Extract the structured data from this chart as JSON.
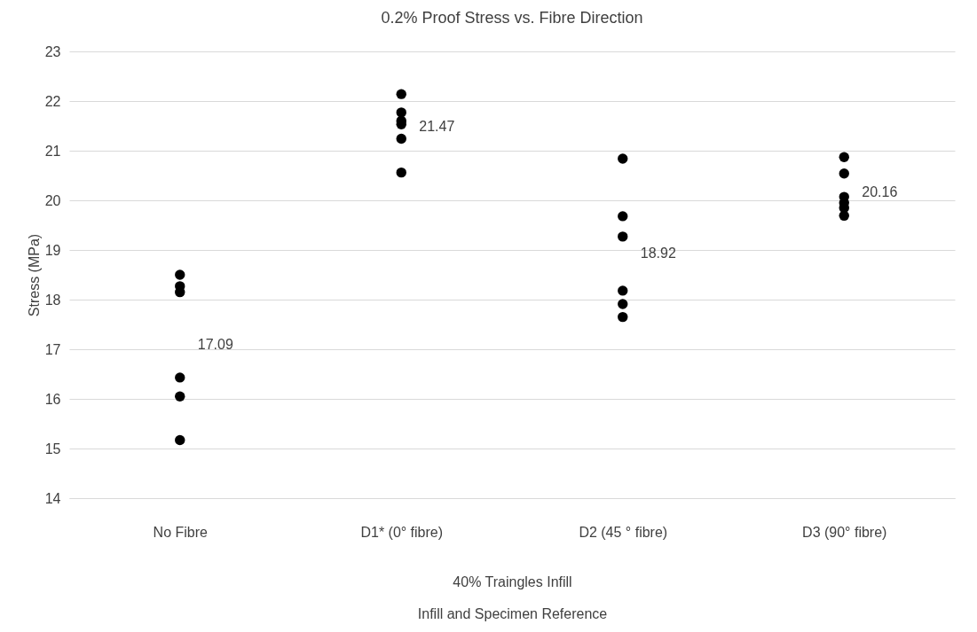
{
  "chart_data": {
    "type": "scatter",
    "title": "0.2% Proof Stress vs. Fibre Direction",
    "xlabel": "Infill and Specimen Reference",
    "ylabel": "Stress (MPa)",
    "categories": [
      "No Fibre",
      "D1* (0° fibre)",
      "D2 (45 ° fibre)",
      "D3 (90° fibre)"
    ],
    "series": [
      {
        "color": "#000000",
        "x": [
          "No Fibre",
          "No Fibre",
          "No Fibre",
          "No Fibre",
          "No Fibre",
          "No Fibre",
          "D1* (0° fibre)",
          "D1* (0° fibre)",
          "D1* (0° fibre)",
          "D1* (0° fibre)",
          "D1* (0° fibre)",
          "D1* (0° fibre)",
          "D2 (45 ° fibre)",
          "D2 (45 ° fibre)",
          "D2 (45 ° fibre)",
          "D2 (45 ° fibre)",
          "D2 (45 ° fibre)",
          "D2 (45 ° fibre)",
          "D3 (90° fibre)",
          "D3 (90° fibre)",
          "D3 (90° fibre)",
          "D3 (90° fibre)",
          "D3 (90° fibre)",
          "D3 (90° fibre)"
        ],
        "values": [
          18.5,
          18.27,
          18.15,
          16.43,
          16.05,
          15.17,
          22.14,
          21.77,
          21.6,
          21.53,
          21.24,
          20.56,
          20.84,
          19.68,
          19.27,
          18.18,
          17.91,
          17.65,
          20.87,
          20.54,
          20.07,
          19.95,
          19.85,
          19.69
        ]
      }
    ],
    "ylim": [
      14,
      23
    ],
    "yticks": [
      14,
      15,
      16,
      17,
      18,
      19,
      20,
      21,
      22,
      23
    ],
    "grid": "y",
    "marker": "circle",
    "annotations": [
      "17.09",
      "21.47",
      "18.92",
      "20.16",
      "40% Traingles Infill"
    ]
  }
}
